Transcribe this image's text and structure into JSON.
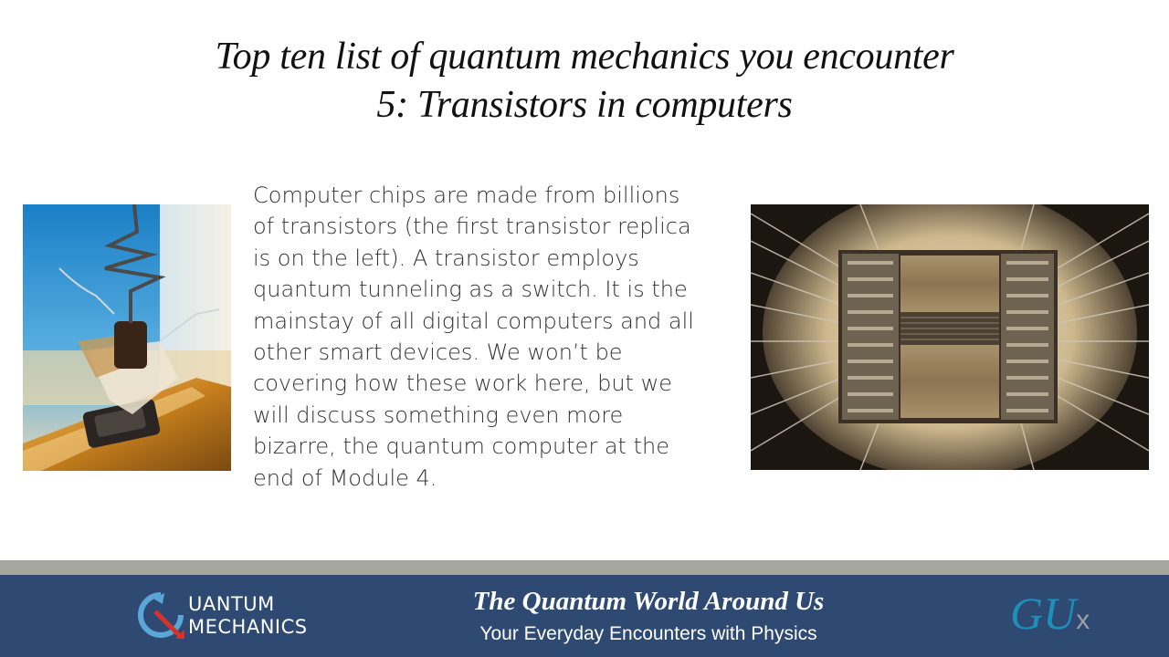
{
  "slide": {
    "title_line1": "Top ten list of quantum mechanics you encounter",
    "title_line2": "5: Transistors in computers",
    "body_lines": [
      "Computer chips are made from billions",
      "of transistors (the first transistor replica",
      "is on the left). A transistor employs",
      "quantum tunneling as a switch. It is the",
      "mainstay of all digital computers and all",
      "other smart devices. We won’t be",
      "covering how these work here, but we",
      "will discuss something even more",
      "bizarre, the quantum computer at the",
      "end of Module 4."
    ]
  },
  "footer": {
    "logo_line1": "UANTUM",
    "logo_line2": "MECHANICS",
    "course_title": "The Quantum World Around Us",
    "course_subtitle": "Your Everyday Encounters with Physics",
    "gux_main": "GU",
    "gux_x": "x"
  },
  "colors": {
    "footer_bg": "#2e4a73",
    "divider": "#a5a6a0",
    "gux_blue": "#1e8fb8",
    "logo_red": "#d6322a",
    "logo_blue": "#5aa6d6"
  },
  "images": {
    "left": "first-transistor-replica-photo",
    "right": "integrated-circuit-chip-photo"
  }
}
